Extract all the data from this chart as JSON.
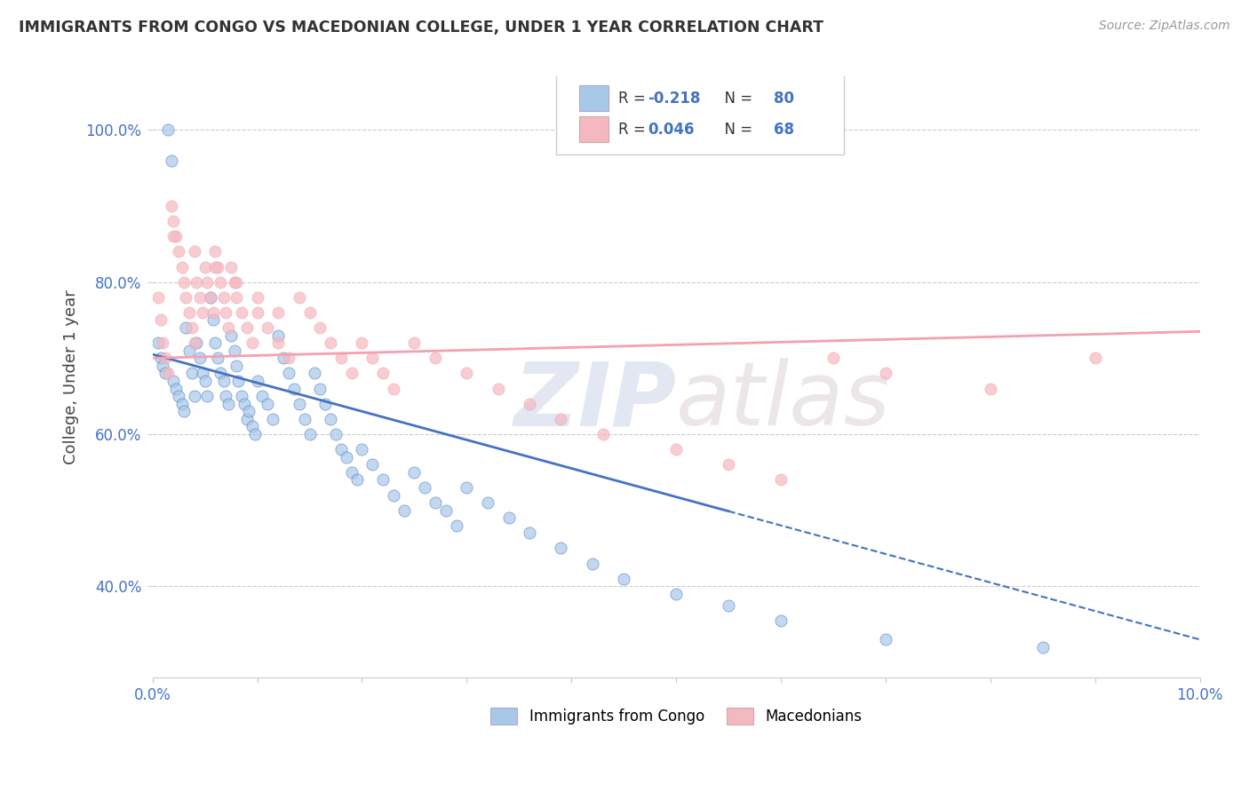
{
  "title": "IMMIGRANTS FROM CONGO VS MACEDONIAN COLLEGE, UNDER 1 YEAR CORRELATION CHART",
  "source": "Source: ZipAtlas.com",
  "ylabel": "College, Under 1 year",
  "xlim": [
    0.0,
    10.0
  ],
  "ylim": [
    28.0,
    107.0
  ],
  "yticks": [
    40.0,
    60.0,
    80.0,
    100.0
  ],
  "ytick_labels": [
    "40.0%",
    "60.0%",
    "80.0%",
    "100.0%"
  ],
  "legend_r1": "R = ",
  "legend_rv1": "-0.218",
  "legend_n1": "  N = ",
  "legend_nv1": "80",
  "legend_r2": "R = ",
  "legend_rv2": "0.046",
  "legend_n2": "  N = ",
  "legend_nv2": "68",
  "legend_label1": "Immigrants from Congo",
  "legend_label2": "Macedonians",
  "color_blue": "#a8c8e8",
  "color_pink": "#f4b8c0",
  "color_blue_line": "#4472c4",
  "color_pink_line": "#f4a0b0",
  "color_text_blue": "#4472c4",
  "watermark_zip": "ZIP",
  "watermark_atlas": "atlas",
  "blue_x": [
    0.05,
    0.08,
    0.1,
    0.12,
    0.15,
    0.18,
    0.2,
    0.22,
    0.25,
    0.28,
    0.3,
    0.32,
    0.35,
    0.38,
    0.4,
    0.42,
    0.45,
    0.48,
    0.5,
    0.52,
    0.55,
    0.58,
    0.6,
    0.62,
    0.65,
    0.68,
    0.7,
    0.72,
    0.75,
    0.78,
    0.8,
    0.82,
    0.85,
    0.88,
    0.9,
    0.92,
    0.95,
    0.98,
    1.0,
    1.05,
    1.1,
    1.15,
    1.2,
    1.25,
    1.3,
    1.35,
    1.4,
    1.45,
    1.5,
    1.55,
    1.6,
    1.65,
    1.7,
    1.75,
    1.8,
    1.85,
    1.9,
    1.95,
    2.0,
    2.1,
    2.2,
    2.3,
    2.4,
    2.5,
    2.6,
    2.7,
    2.8,
    2.9,
    3.0,
    3.2,
    3.4,
    3.6,
    3.9,
    4.2,
    4.5,
    5.0,
    5.5,
    6.0,
    7.0,
    8.5
  ],
  "blue_y": [
    72.0,
    70.0,
    69.0,
    68.0,
    100.0,
    96.0,
    67.0,
    66.0,
    65.0,
    64.0,
    63.0,
    74.0,
    71.0,
    68.0,
    65.0,
    72.0,
    70.0,
    68.0,
    67.0,
    65.0,
    78.0,
    75.0,
    72.0,
    70.0,
    68.0,
    67.0,
    65.0,
    64.0,
    73.0,
    71.0,
    69.0,
    67.0,
    65.0,
    64.0,
    62.0,
    63.0,
    61.0,
    60.0,
    67.0,
    65.0,
    64.0,
    62.0,
    73.0,
    70.0,
    68.0,
    66.0,
    64.0,
    62.0,
    60.0,
    68.0,
    66.0,
    64.0,
    62.0,
    60.0,
    58.0,
    57.0,
    55.0,
    54.0,
    58.0,
    56.0,
    54.0,
    52.0,
    50.0,
    55.0,
    53.0,
    51.0,
    50.0,
    48.0,
    53.0,
    51.0,
    49.0,
    47.0,
    45.0,
    43.0,
    41.0,
    39.0,
    37.5,
    35.5,
    33.0,
    32.0
  ],
  "pink_x": [
    0.05,
    0.08,
    0.1,
    0.12,
    0.15,
    0.18,
    0.2,
    0.22,
    0.25,
    0.28,
    0.3,
    0.32,
    0.35,
    0.38,
    0.4,
    0.42,
    0.45,
    0.48,
    0.5,
    0.52,
    0.55,
    0.58,
    0.6,
    0.62,
    0.65,
    0.68,
    0.7,
    0.72,
    0.75,
    0.78,
    0.8,
    0.85,
    0.9,
    0.95,
    1.0,
    1.1,
    1.2,
    1.3,
    1.4,
    1.5,
    1.6,
    1.7,
    1.8,
    1.9,
    2.0,
    2.1,
    2.2,
    2.3,
    2.5,
    2.7,
    3.0,
    3.3,
    3.6,
    3.9,
    4.3,
    5.0,
    5.5,
    6.0,
    6.5,
    7.0,
    8.0,
    9.0,
    0.2,
    0.4,
    0.6,
    0.8,
    1.0,
    1.2
  ],
  "pink_y": [
    78.0,
    75.0,
    72.0,
    70.0,
    68.0,
    90.0,
    88.0,
    86.0,
    84.0,
    82.0,
    80.0,
    78.0,
    76.0,
    74.0,
    72.0,
    80.0,
    78.0,
    76.0,
    82.0,
    80.0,
    78.0,
    76.0,
    84.0,
    82.0,
    80.0,
    78.0,
    76.0,
    74.0,
    82.0,
    80.0,
    78.0,
    76.0,
    74.0,
    72.0,
    76.0,
    74.0,
    72.0,
    70.0,
    78.0,
    76.0,
    74.0,
    72.0,
    70.0,
    68.0,
    72.0,
    70.0,
    68.0,
    66.0,
    72.0,
    70.0,
    68.0,
    66.0,
    64.0,
    62.0,
    60.0,
    58.0,
    56.0,
    54.0,
    70.0,
    68.0,
    66.0,
    70.0,
    86.0,
    84.0,
    82.0,
    80.0,
    78.0,
    76.0
  ]
}
